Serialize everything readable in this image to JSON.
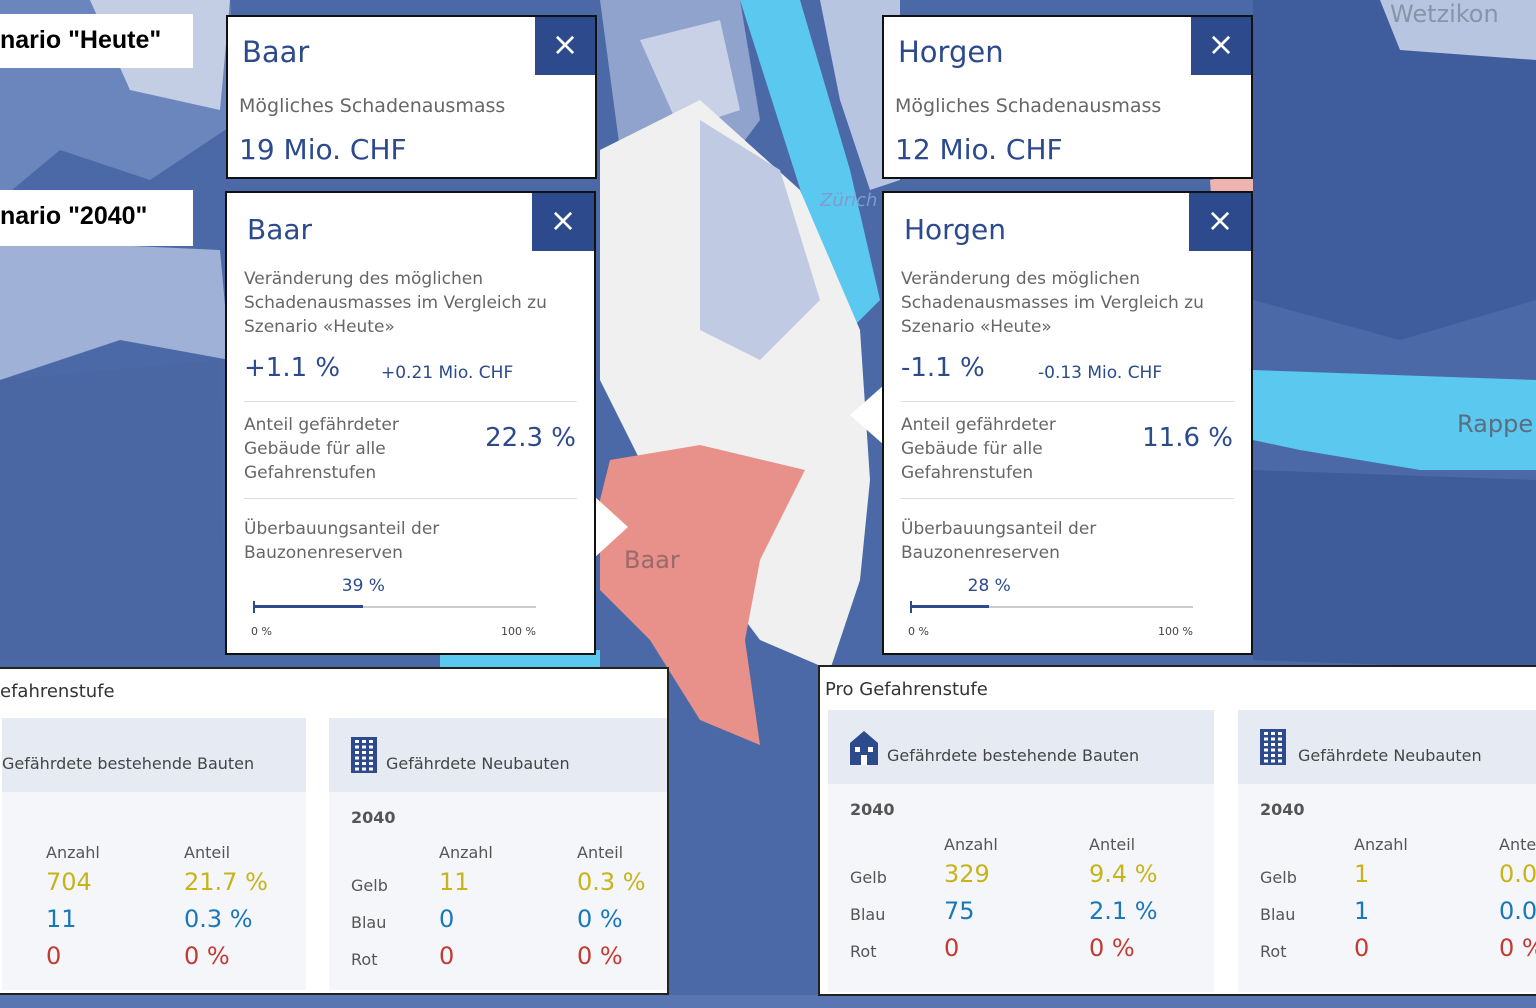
{
  "scenarios": {
    "today": "nario \"Heute\"",
    "future": "nario \"2040\""
  },
  "map_labels": {
    "wetzikon": "Wetzikon",
    "zurich": "Zürich",
    "baar": "Baar",
    "rapperswil": "Rappe"
  },
  "popups_today": [
    {
      "title": "Baar",
      "close": "×",
      "label": "Mögliches Schadenausmass",
      "value": "19 Mio. CHF"
    },
    {
      "title": "Horgen",
      "close": "×",
      "label": "Mögliches Schadenausmass",
      "value": "12 Mio. CHF"
    }
  ],
  "popups_2040": [
    {
      "title": "Baar",
      "close": "×",
      "change_label": [
        "Veränderung des möglichen",
        "Schadenausmasses im Vergleich zu",
        "Szenario «Heute»"
      ],
      "change_pct": "+1.1 %",
      "change_abs": "+0.21 Mio. CHF",
      "share_label": [
        "Anteil gefährdeter",
        "Gebäude für alle",
        "Gefahrenstufen"
      ],
      "share_value": "22.3 %",
      "reserve_label": [
        "Überbauungsanteil der",
        "Bauzonenreserven"
      ],
      "reserve": {
        "value": 39,
        "label": "39 %"
      },
      "scale": [
        {
          "value": 0,
          "label": "0 %"
        },
        {
          "value": 100,
          "label": "100 %"
        }
      ]
    },
    {
      "title": "Horgen",
      "close": "×",
      "change_label": [
        "Veränderung des möglichen",
        "Schadenausmasses im Vergleich zu",
        "Szenario «Heute»"
      ],
      "change_pct": "-1.1 %",
      "change_abs": "-0.13 Mio. CHF",
      "share_label": [
        "Anteil gefährdeter",
        "Gebäude für alle",
        "Gefahrenstufen"
      ],
      "share_value": "11.6 %",
      "reserve_label": [
        "Überbauungsanteil der",
        "Bauzonenreserven"
      ],
      "reserve": {
        "value": 28,
        "label": "28 %"
      },
      "scale": [
        {
          "value": 0,
          "label": "0 %"
        },
        {
          "value": 100,
          "label": "100 %"
        }
      ]
    }
  ],
  "tables": [
    {
      "heading": "efahrenstufe",
      "panels": [
        {
          "title": "Gefährdete bestehende Bauten",
          "columns": [
            "Anzahl",
            "Anteil"
          ],
          "rows": [
            {
              "count": "704",
              "share": "21.7 %"
            },
            {
              "count": "11",
              "share": "0.3 %"
            },
            {
              "count": "0",
              "share": "0 %"
            }
          ]
        },
        {
          "title": "Gefährdete Neubauten",
          "year": "2040",
          "columns": [
            "Anzahl",
            "Anteil"
          ],
          "rows": [
            {
              "label": "Gelb",
              "count": "11",
              "share": "0.3 %"
            },
            {
              "label": "Blau",
              "count": "0",
              "share": "0 %"
            },
            {
              "label": "Rot",
              "count": "0",
              "share": "0 %"
            }
          ]
        }
      ]
    },
    {
      "heading": "Pro Gefahrenstufe",
      "panels": [
        {
          "title": "Gefährdete bestehende Bauten",
          "year": "2040",
          "columns": [
            "Anzahl",
            "Anteil"
          ],
          "rows": [
            {
              "label": "Gelb",
              "count": "329",
              "share": "9.4 %"
            },
            {
              "label": "Blau",
              "count": "75",
              "share": "2.1 %"
            },
            {
              "label": "Rot",
              "count": "0",
              "share": "0 %"
            }
          ]
        },
        {
          "title": "Gefährdete Neubauten",
          "year": "2040",
          "columns": [
            "Anzahl",
            "Ante"
          ],
          "rows": [
            {
              "label": "Gelb",
              "count": "1",
              "share": "0.0"
            },
            {
              "label": "Blau",
              "count": "1",
              "share": "0.0"
            },
            {
              "label": "Rot",
              "count": "0",
              "share": "0 %"
            }
          ]
        }
      ]
    }
  ]
}
